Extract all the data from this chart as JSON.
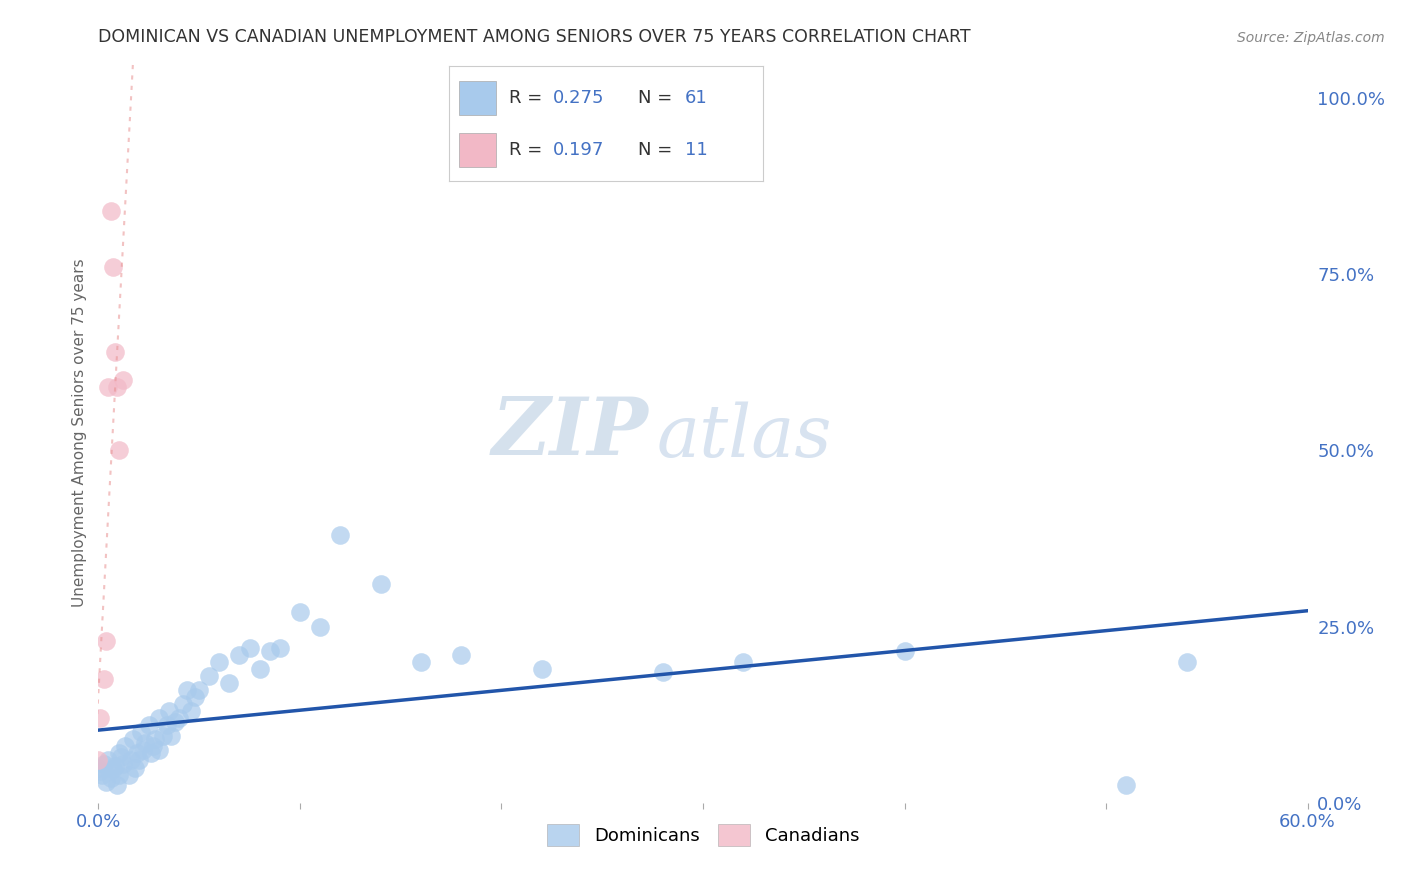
{
  "title": "DOMINICAN VS CANADIAN UNEMPLOYMENT AMONG SENIORS OVER 75 YEARS CORRELATION CHART",
  "source": "Source: ZipAtlas.com",
  "ylabel": "Unemployment Among Seniors over 75 years",
  "xlim": [
    0.0,
    0.6
  ],
  "ylim": [
    0.0,
    1.05
  ],
  "right_yticks": [
    0.0,
    0.25,
    0.5,
    0.75,
    1.0
  ],
  "right_yticklabels": [
    "0.0%",
    "25.0%",
    "50.0%",
    "75.0%",
    "100.0%"
  ],
  "xticks": [
    0.0,
    0.1,
    0.2,
    0.3,
    0.4,
    0.5,
    0.6
  ],
  "xticklabels": [
    "0.0%",
    "",
    "",
    "",
    "",
    "",
    "60.0%"
  ],
  "dominican_color": "#A8CAEC",
  "canadian_color": "#F2B8C6",
  "trend_dominican_color": "#2255AA",
  "trend_canadian_color": "#E89090",
  "background_color": "#ffffff",
  "legend_R_dominican": "R = 0.275",
  "legend_N_dominican": "N = 61",
  "legend_R_canadian": "R = 0.197",
  "legend_N_canadian": "N = 11",
  "dominican_x": [
    0.0,
    0.001,
    0.002,
    0.003,
    0.004,
    0.005,
    0.006,
    0.007,
    0.008,
    0.009,
    0.01,
    0.01,
    0.011,
    0.012,
    0.013,
    0.015,
    0.016,
    0.017,
    0.018,
    0.019,
    0.02,
    0.021,
    0.022,
    0.023,
    0.025,
    0.026,
    0.027,
    0.028,
    0.03,
    0.03,
    0.032,
    0.034,
    0.035,
    0.036,
    0.038,
    0.04,
    0.042,
    0.044,
    0.046,
    0.048,
    0.05,
    0.055,
    0.06,
    0.065,
    0.07,
    0.075,
    0.08,
    0.085,
    0.09,
    0.1,
    0.11,
    0.12,
    0.14,
    0.16,
    0.18,
    0.22,
    0.28,
    0.32,
    0.4,
    0.51,
    0.54
  ],
  "dominican_y": [
    0.05,
    0.045,
    0.04,
    0.055,
    0.03,
    0.06,
    0.035,
    0.048,
    0.052,
    0.025,
    0.07,
    0.04,
    0.065,
    0.055,
    0.08,
    0.04,
    0.06,
    0.09,
    0.05,
    0.07,
    0.06,
    0.1,
    0.075,
    0.085,
    0.11,
    0.07,
    0.08,
    0.09,
    0.12,
    0.075,
    0.095,
    0.11,
    0.13,
    0.095,
    0.115,
    0.12,
    0.14,
    0.16,
    0.13,
    0.15,
    0.16,
    0.18,
    0.2,
    0.17,
    0.21,
    0.22,
    0.19,
    0.215,
    0.22,
    0.27,
    0.25,
    0.38,
    0.31,
    0.2,
    0.21,
    0.19,
    0.185,
    0.2,
    0.215,
    0.025,
    0.2
  ],
  "canadian_x": [
    0.0,
    0.001,
    0.003,
    0.004,
    0.005,
    0.006,
    0.007,
    0.008,
    0.009,
    0.01,
    0.012
  ],
  "canadian_y": [
    0.06,
    0.12,
    0.175,
    0.23,
    0.59,
    0.84,
    0.76,
    0.64,
    0.59,
    0.5,
    0.6
  ],
  "watermark_zip": "ZIP",
  "watermark_atlas": "atlas",
  "marker_size": 180
}
